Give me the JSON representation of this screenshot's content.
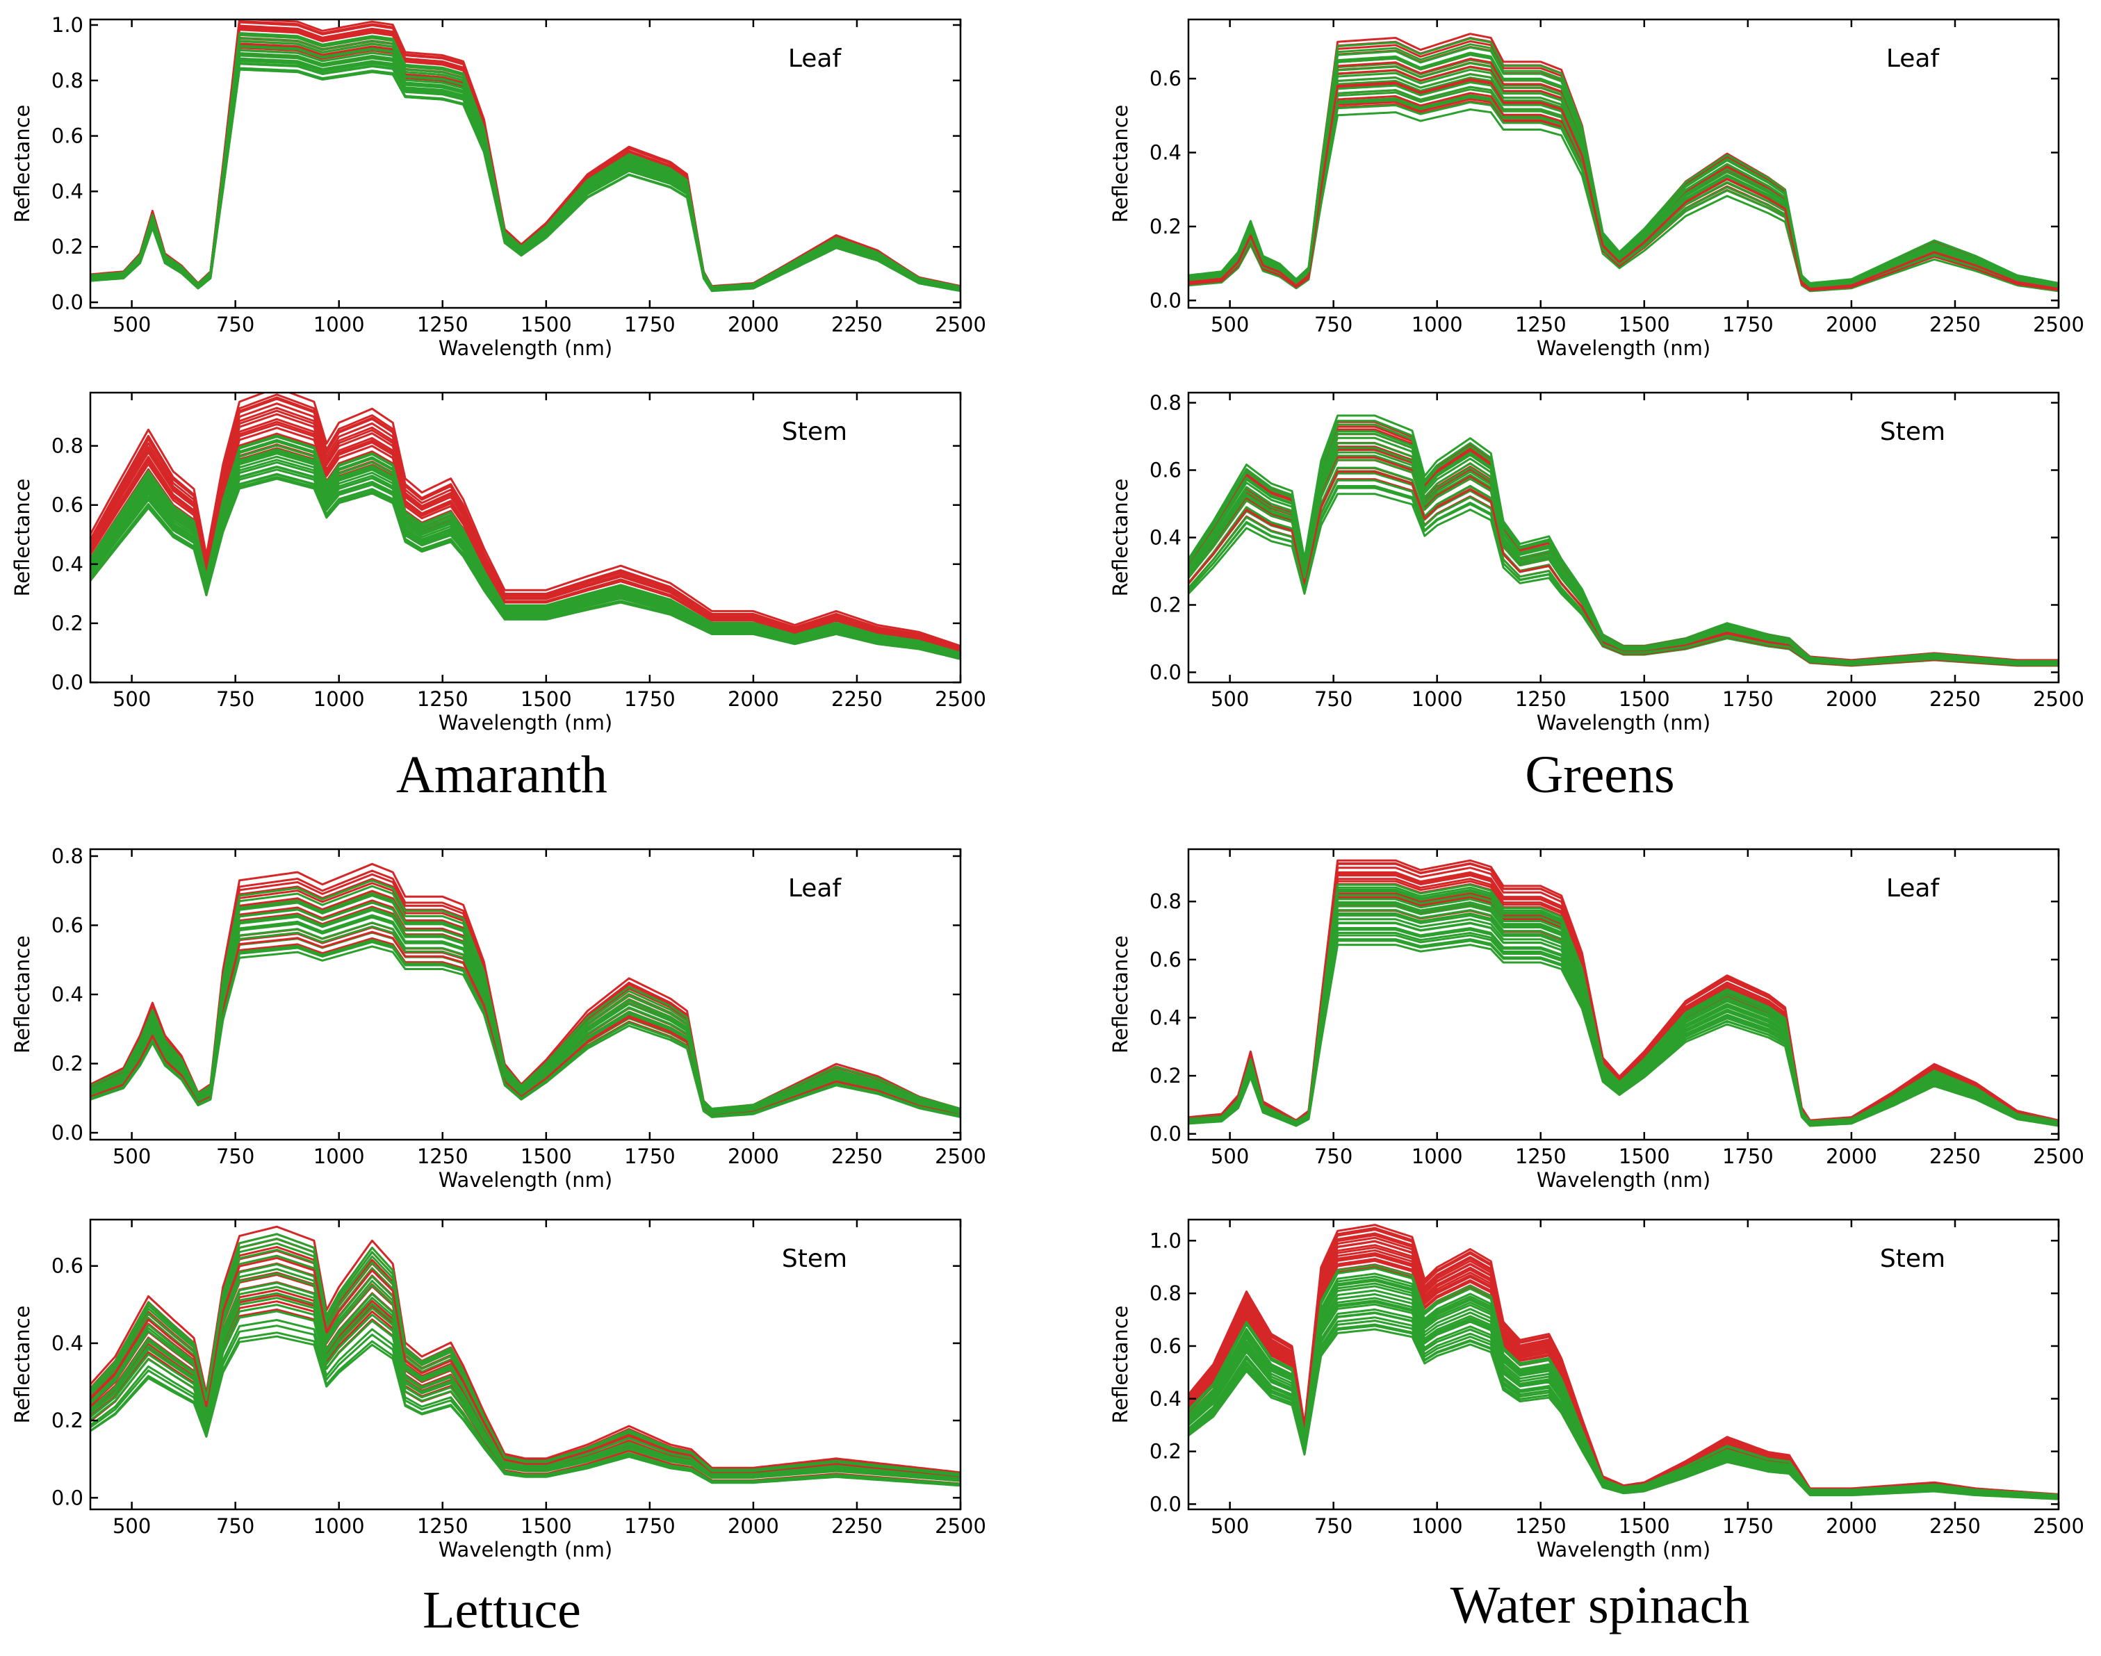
{
  "colors": {
    "groupA": "#d62728",
    "groupB": "#2ca02c"
  },
  "groups": [
    {
      "title": "Amaranth"
    },
    {
      "title": "Greens"
    },
    {
      "title": "Lettuce"
    },
    {
      "title": "Water spinach"
    }
  ],
  "chart_data": [
    {
      "type": "line",
      "group": "Amaranth",
      "tag": "Leaf",
      "xlabel": "Wavelength (nm)",
      "ylabel": "Reflectance",
      "xlim": [
        400,
        2500
      ],
      "ylim": [
        -0.02,
        1.02
      ],
      "xticks": [
        500,
        750,
        1000,
        1250,
        1500,
        1750,
        2000,
        2250,
        2500
      ],
      "yticks": [
        0.0,
        0.2,
        0.4,
        0.6,
        0.8,
        1.0
      ],
      "ytick_labels": [
        "0.0",
        "0.2",
        "0.4",
        "0.6",
        "0.8",
        "1.0"
      ],
      "base_profile": {
        "x": [
          400,
          480,
          520,
          550,
          580,
          620,
          660,
          690,
          720,
          760,
          900,
          960,
          1080,
          1130,
          1160,
          1250,
          1300,
          1350,
          1400,
          1440,
          1500,
          1600,
          1700,
          1800,
          1840,
          1880,
          1900,
          2000,
          2100,
          2200,
          2300,
          2400,
          2500
        ],
        "y": [
          0.09,
          0.1,
          0.16,
          0.3,
          0.16,
          0.12,
          0.06,
          0.1,
          0.45,
          0.93,
          0.92,
          0.89,
          0.92,
          0.91,
          0.82,
          0.81,
          0.79,
          0.6,
          0.24,
          0.19,
          0.26,
          0.42,
          0.51,
          0.46,
          0.42,
          0.1,
          0.05,
          0.06,
          0.14,
          0.22,
          0.17,
          0.08,
          0.05
        ]
      },
      "series": [
        {
          "name": "red",
          "color": "#d62728",
          "count": 18,
          "scale_range": [
            0.96,
            1.1
          ]
        },
        {
          "name": "green",
          "color": "#2ca02c",
          "count": 22,
          "scale_range": [
            0.9,
            1.04
          ]
        }
      ]
    },
    {
      "type": "line",
      "group": "Amaranth",
      "tag": "Stem",
      "xlabel": "Wavelength (nm)",
      "ylabel": "Reflectance",
      "xlim": [
        400,
        2500
      ],
      "ylim": [
        0.0,
        0.98
      ],
      "xticks": [
        500,
        750,
        1000,
        1250,
        1500,
        1750,
        2000,
        2250,
        2500
      ],
      "yticks": [
        0.0,
        0.2,
        0.4,
        0.6,
        0.8
      ],
      "ytick_labels": [
        "0.0",
        "0.2",
        "0.4",
        "0.6",
        "0.8"
      ],
      "base_profile": {
        "x": [
          400,
          460,
          540,
          600,
          650,
          680,
          720,
          760,
          850,
          940,
          970,
          1000,
          1080,
          1130,
          1160,
          1200,
          1270,
          1300,
          1350,
          1400,
          1500,
          1600,
          1680,
          1800,
          1900,
          2000,
          2100,
          2200,
          2300,
          2400,
          2500
        ],
        "y": [
          0.42,
          0.55,
          0.72,
          0.6,
          0.55,
          0.36,
          0.62,
          0.8,
          0.84,
          0.8,
          0.68,
          0.74,
          0.78,
          0.74,
          0.58,
          0.54,
          0.58,
          0.52,
          0.38,
          0.26,
          0.26,
          0.3,
          0.33,
          0.28,
          0.2,
          0.2,
          0.16,
          0.2,
          0.16,
          0.14,
          0.1
        ]
      },
      "series": [
        {
          "name": "red",
          "color": "#d62728",
          "count": 18,
          "scale_range": [
            0.93,
            1.18
          ]
        },
        {
          "name": "green",
          "color": "#2ca02c",
          "count": 22,
          "scale_range": [
            0.82,
            1.0
          ]
        }
      ]
    },
    {
      "type": "line",
      "group": "Greens",
      "tag": "Leaf",
      "xlabel": "Wavelength (nm)",
      "ylabel": "Reflectance",
      "xlim": [
        400,
        2500
      ],
      "ylim": [
        -0.02,
        0.76
      ],
      "xticks": [
        500,
        750,
        1000,
        1250,
        1500,
        1750,
        2000,
        2250,
        2500
      ],
      "yticks": [
        0.0,
        0.2,
        0.4,
        0.6
      ],
      "ytick_labels": [
        "0.0",
        "0.2",
        "0.4",
        "0.6"
      ],
      "base_profile": {
        "x": [
          400,
          480,
          520,
          550,
          580,
          620,
          660,
          690,
          720,
          760,
          900,
          960,
          1080,
          1130,
          1160,
          1250,
          1300,
          1350,
          1400,
          1440,
          1500,
          1600,
          1700,
          1800,
          1840,
          1880,
          1900,
          2000,
          2100,
          2200,
          2300,
          2400,
          2500
        ],
        "y": [
          0.06,
          0.07,
          0.12,
          0.2,
          0.11,
          0.09,
          0.05,
          0.08,
          0.34,
          0.65,
          0.66,
          0.63,
          0.67,
          0.66,
          0.6,
          0.6,
          0.58,
          0.44,
          0.17,
          0.12,
          0.18,
          0.3,
          0.37,
          0.31,
          0.28,
          0.06,
          0.04,
          0.05,
          0.1,
          0.15,
          0.11,
          0.06,
          0.04
        ]
      },
      "series": [
        {
          "name": "red",
          "color": "#d62728",
          "count": 15,
          "scale_range": [
            0.8,
            1.08
          ]
        },
        {
          "name": "green",
          "color": "#2ca02c",
          "count": 18,
          "scale_range": [
            0.78,
            1.05
          ]
        }
      ]
    },
    {
      "type": "line",
      "group": "Greens",
      "tag": "Stem",
      "xlabel": "Wavelength (nm)",
      "ylabel": "Reflectance",
      "xlim": [
        400,
        2500
      ],
      "ylim": [
        -0.03,
        0.83
      ],
      "xticks": [
        500,
        750,
        1000,
        1250,
        1500,
        1750,
        2000,
        2250,
        2500
      ],
      "yticks": [
        0.0,
        0.2,
        0.4,
        0.6,
        0.8
      ],
      "ytick_labels": [
        "0.0",
        "0.2",
        "0.4",
        "0.6",
        "0.8"
      ],
      "base_profile": {
        "x": [
          400,
          460,
          540,
          600,
          650,
          680,
          720,
          760,
          850,
          940,
          970,
          1000,
          1080,
          1130,
          1160,
          1200,
          1270,
          1300,
          1350,
          1400,
          1450,
          1500,
          1600,
          1700,
          1800,
          1850,
          1900,
          2000,
          2100,
          2200,
          2300,
          2400,
          2500
        ],
        "y": [
          0.3,
          0.4,
          0.55,
          0.5,
          0.48,
          0.3,
          0.56,
          0.68,
          0.68,
          0.64,
          0.52,
          0.56,
          0.62,
          0.58,
          0.4,
          0.34,
          0.36,
          0.3,
          0.22,
          0.1,
          0.07,
          0.07,
          0.09,
          0.13,
          0.1,
          0.09,
          0.04,
          0.03,
          0.04,
          0.05,
          0.04,
          0.03,
          0.03
        ]
      },
      "series": [
        {
          "name": "red",
          "color": "#d62728",
          "count": 12,
          "scale_range": [
            0.85,
            1.1
          ]
        },
        {
          "name": "green",
          "color": "#2ca02c",
          "count": 18,
          "scale_range": [
            0.78,
            1.12
          ]
        }
      ]
    },
    {
      "type": "line",
      "group": "Lettuce",
      "tag": "Leaf",
      "xlabel": "Wavelength (nm)",
      "ylabel": "Reflectance",
      "xlim": [
        400,
        2500
      ],
      "ylim": [
        -0.02,
        0.82
      ],
      "xticks": [
        500,
        750,
        1000,
        1250,
        1500,
        1750,
        2000,
        2250,
        2500
      ],
      "yticks": [
        0.0,
        0.2,
        0.4,
        0.6,
        0.8
      ],
      "ytick_labels": [
        "0.0",
        "0.2",
        "0.4",
        "0.6",
        "0.8"
      ],
      "base_profile": {
        "x": [
          400,
          480,
          520,
          550,
          580,
          620,
          660,
          690,
          720,
          760,
          900,
          960,
          1080,
          1130,
          1160,
          1250,
          1300,
          1350,
          1400,
          1440,
          1500,
          1600,
          1700,
          1800,
          1840,
          1880,
          1900,
          2000,
          2100,
          2200,
          2300,
          2400,
          2500
        ],
        "y": [
          0.12,
          0.16,
          0.24,
          0.32,
          0.24,
          0.19,
          0.1,
          0.12,
          0.4,
          0.62,
          0.64,
          0.61,
          0.66,
          0.64,
          0.58,
          0.58,
          0.56,
          0.42,
          0.17,
          0.12,
          0.18,
          0.3,
          0.38,
          0.33,
          0.3,
          0.08,
          0.06,
          0.07,
          0.12,
          0.17,
          0.14,
          0.09,
          0.06
        ]
      },
      "series": [
        {
          "name": "red",
          "color": "#d62728",
          "count": 15,
          "scale_range": [
            0.86,
            1.18
          ]
        },
        {
          "name": "green",
          "color": "#2ca02c",
          "count": 18,
          "scale_range": [
            0.82,
            1.1
          ]
        }
      ]
    },
    {
      "type": "line",
      "group": "Lettuce",
      "tag": "Stem",
      "xlabel": "Wavelength (nm)",
      "ylabel": "Reflectance",
      "xlim": [
        400,
        2500
      ],
      "ylim": [
        -0.03,
        0.72
      ],
      "xticks": [
        500,
        750,
        1000,
        1250,
        1500,
        1750,
        2000,
        2250,
        2500
      ],
      "yticks": [
        0.0,
        0.2,
        0.4,
        0.6
      ],
      "ytick_labels": [
        "0.0",
        "0.2",
        "0.4",
        "0.6"
      ],
      "base_profile": {
        "x": [
          400,
          460,
          540,
          600,
          650,
          680,
          720,
          760,
          850,
          940,
          970,
          1000,
          1080,
          1130,
          1160,
          1200,
          1270,
          1300,
          1350,
          1400,
          1450,
          1500,
          1600,
          1700,
          1800,
          1850,
          1900,
          2000,
          2100,
          2200,
          2300,
          2400,
          2500
        ],
        "y": [
          0.24,
          0.3,
          0.43,
          0.38,
          0.34,
          0.22,
          0.45,
          0.56,
          0.58,
          0.55,
          0.4,
          0.45,
          0.55,
          0.5,
          0.33,
          0.3,
          0.33,
          0.28,
          0.18,
          0.09,
          0.08,
          0.08,
          0.11,
          0.15,
          0.11,
          0.1,
          0.06,
          0.06,
          0.07,
          0.08,
          0.07,
          0.06,
          0.05
        ]
      },
      "series": [
        {
          "name": "red",
          "color": "#d62728",
          "count": 14,
          "scale_range": [
            0.85,
            1.2
          ]
        },
        {
          "name": "green",
          "color": "#2ca02c",
          "count": 18,
          "scale_range": [
            0.72,
            1.18
          ]
        }
      ]
    },
    {
      "type": "line",
      "group": "Water spinach",
      "tag": "Leaf",
      "xlabel": "Wavelength (nm)",
      "ylabel": "Reflectance",
      "xlim": [
        400,
        2500
      ],
      "ylim": [
        -0.02,
        0.98
      ],
      "xticks": [
        500,
        750,
        1000,
        1250,
        1500,
        1750,
        2000,
        2250,
        2500
      ],
      "yticks": [
        0.0,
        0.2,
        0.4,
        0.6,
        0.8
      ],
      "ytick_labels": [
        "0.0",
        "0.2",
        "0.4",
        "0.6",
        "0.8"
      ],
      "base_profile": {
        "x": [
          400,
          480,
          520,
          550,
          580,
          620,
          660,
          690,
          720,
          760,
          900,
          960,
          1080,
          1130,
          1160,
          1250,
          1300,
          1350,
          1400,
          1440,
          1500,
          1600,
          1700,
          1800,
          1840,
          1880,
          1900,
          2000,
          2100,
          2200,
          2300,
          2400,
          2500
        ],
        "y": [
          0.05,
          0.06,
          0.12,
          0.26,
          0.1,
          0.07,
          0.04,
          0.07,
          0.42,
          0.86,
          0.86,
          0.83,
          0.86,
          0.84,
          0.78,
          0.78,
          0.75,
          0.57,
          0.24,
          0.18,
          0.26,
          0.42,
          0.5,
          0.44,
          0.4,
          0.08,
          0.04,
          0.05,
          0.13,
          0.22,
          0.16,
          0.07,
          0.04
        ]
      },
      "series": [
        {
          "name": "red",
          "color": "#d62728",
          "count": 18,
          "scale_range": [
            0.9,
            1.1
          ]
        },
        {
          "name": "green",
          "color": "#2ca02c",
          "count": 22,
          "scale_range": [
            0.76,
            1.0
          ]
        }
      ]
    },
    {
      "type": "line",
      "group": "Water spinach",
      "tag": "Stem",
      "xlabel": "Wavelength (nm)",
      "ylabel": "Reflectance",
      "xlim": [
        400,
        2500
      ],
      "ylim": [
        -0.02,
        1.08
      ],
      "xticks": [
        500,
        750,
        1000,
        1250,
        1500,
        1750,
        2000,
        2250,
        2500
      ],
      "yticks": [
        0.0,
        0.2,
        0.4,
        0.6,
        0.8,
        1.0
      ],
      "ytick_labels": [
        "0.0",
        "0.2",
        "0.4",
        "0.6",
        "0.8",
        "1.0"
      ],
      "base_profile": {
        "x": [
          400,
          460,
          540,
          600,
          650,
          680,
          720,
          760,
          850,
          940,
          970,
          1000,
          1080,
          1130,
          1160,
          1200,
          1270,
          1300,
          1350,
          1400,
          1450,
          1500,
          1600,
          1700,
          1800,
          1850,
          1900,
          2000,
          2100,
          2200,
          2300,
          2400,
          2500
        ],
        "y": [
          0.36,
          0.46,
          0.7,
          0.56,
          0.52,
          0.26,
          0.78,
          0.9,
          0.92,
          0.88,
          0.74,
          0.78,
          0.84,
          0.8,
          0.6,
          0.54,
          0.56,
          0.48,
          0.28,
          0.09,
          0.06,
          0.07,
          0.14,
          0.22,
          0.17,
          0.16,
          0.05,
          0.05,
          0.06,
          0.07,
          0.05,
          0.04,
          0.03
        ]
      },
      "series": [
        {
          "name": "red",
          "color": "#d62728",
          "count": 18,
          "scale_range": [
            0.98,
            1.15
          ]
        },
        {
          "name": "green",
          "color": "#2ca02c",
          "count": 22,
          "scale_range": [
            0.72,
            0.98
          ]
        }
      ]
    }
  ]
}
